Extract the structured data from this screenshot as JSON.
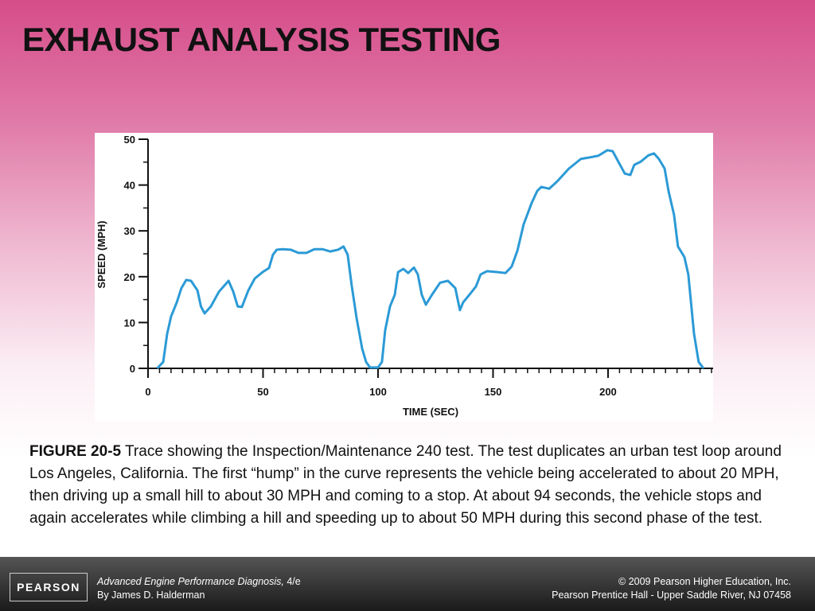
{
  "slide_title": "EXHAUST ANALYSIS TESTING",
  "chart_data": {
    "type": "line",
    "xlabel": "TIME (SEC)",
    "ylabel": "SPEED (MPH)",
    "xlim": [
      0,
      245
    ],
    "ylim": [
      0,
      50
    ],
    "xticks": [
      0,
      50,
      100,
      150,
      200
    ],
    "yticks": [
      0,
      10,
      20,
      30,
      40,
      50
    ],
    "xminor_step": 5,
    "yminor_step": 5,
    "color": "#2b9ad6",
    "x": [
      4,
      6.6,
      8.3,
      10,
      12.5,
      14.5,
      16.6,
      18.7,
      21.5,
      23,
      24.6,
      27.3,
      30.8,
      35,
      37,
      39,
      40.8,
      43.6,
      46.4,
      49.8,
      52.6,
      54.3,
      56,
      58.5,
      62,
      65.4,
      68.9,
      72.3,
      75.8,
      79.2,
      82.7,
      85,
      86.8,
      88.6,
      90.7,
      93.1,
      94.8,
      96.5,
      100,
      101.7,
      103.1,
      105.2,
      107.3,
      108.7,
      111,
      113.1,
      115.6,
      117.3,
      119,
      120.8,
      123.5,
      127,
      130.4,
      133.6,
      135.6,
      137,
      139.8,
      142.6,
      144.6,
      147.4,
      151.9,
      155.4,
      158.1,
      160.6,
      163.3,
      166.8,
      169.2,
      171,
      174.4,
      177.9,
      183,
      188.2,
      191.7,
      195.8,
      199.7,
      202,
      204.8,
      207.3,
      209.7,
      211.4,
      214.2,
      217.6,
      220,
      222.1,
      224.6,
      226.3,
      228.7,
      230.4,
      233.2,
      234.9,
      237.4,
      239.4,
      241.5
    ],
    "values": [
      0,
      1.4,
      7.5,
      11.3,
      14.4,
      17.5,
      19.3,
      19.1,
      17,
      13.5,
      12,
      13.5,
      16.7,
      19.1,
      16.8,
      13.5,
      13.4,
      17,
      19.6,
      21,
      21.9,
      24.8,
      25.9,
      26,
      25.9,
      25.2,
      25.2,
      26,
      26,
      25.5,
      25.9,
      26.6,
      24.8,
      17.9,
      10.9,
      4.3,
      1.4,
      0.2,
      0.2,
      1.4,
      8.3,
      13.5,
      16.1,
      21,
      21.7,
      20.8,
      22,
      20.5,
      16.1,
      13.9,
      16.1,
      18.7,
      19.1,
      17.5,
      12.7,
      14.4,
      16.1,
      17.9,
      20.5,
      21.2,
      21,
      20.8,
      22.2,
      25.7,
      31.4,
      36.1,
      38.7,
      39.6,
      39.2,
      40.8,
      43.6,
      45.7,
      46,
      46.4,
      47.6,
      47.4,
      44.8,
      42.5,
      42.2,
      44.4,
      45.1,
      46.5,
      46.9,
      45.7,
      43.6,
      38.7,
      33.5,
      26.6,
      24.3,
      20.5,
      7.5,
      1.4,
      0
    ]
  },
  "caption": {
    "label": "FIGURE 20-5",
    "text": "Trace showing the Inspection/Maintenance 240 test. The test duplicates an urban test loop around Los Angeles, California. The first “hump” in the curve represents the vehicle being accelerated to about 20 MPH, then driving up a small hill to about 30 MPH and coming to a stop. At about 94 seconds, the vehicle stops and again accelerates while climbing a hill and speeding up to about 50 MPH during this second phase of the test."
  },
  "footer": {
    "logo": "PEARSON",
    "book_title": "Advanced Engine Performance Diagnosis,",
    "edition": "4/e",
    "author": "By James D. Halderman",
    "copyright": "© 2009 Pearson Higher Education, Inc.",
    "publisher": "Pearson Prentice Hall - Upper Saddle River, NJ 07458"
  }
}
